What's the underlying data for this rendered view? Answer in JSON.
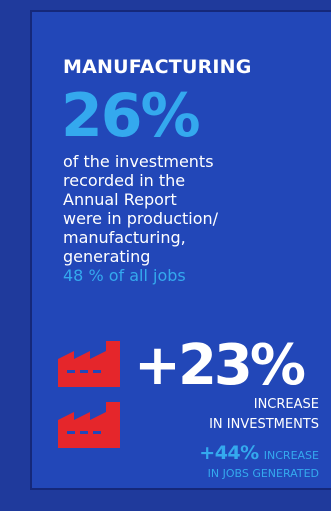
{
  "colors": {
    "background": "#1f3a9c",
    "card": "#2247b8",
    "accent_blue": "#34a9ee",
    "accent_red": "#e5262b",
    "text": "#ffffff"
  },
  "section": {
    "title": "MANUFACTURING"
  },
  "headline": {
    "percent": "26%",
    "description_lines": [
      "of the investments",
      "recorded in the",
      "Annual Report",
      "were in production/",
      "manufacturing,",
      "generating"
    ],
    "highlight": "48 % of all jobs"
  },
  "icons": {
    "factory": "factory-icon"
  },
  "stats": {
    "investments_change": "+23%",
    "investments_label_1": "INCREASE",
    "investments_label_2": "IN INVESTMENTS",
    "jobs_change": "+44%",
    "jobs_label_1": "INCREASE",
    "jobs_label_2": "IN JOBS GENERATED"
  }
}
